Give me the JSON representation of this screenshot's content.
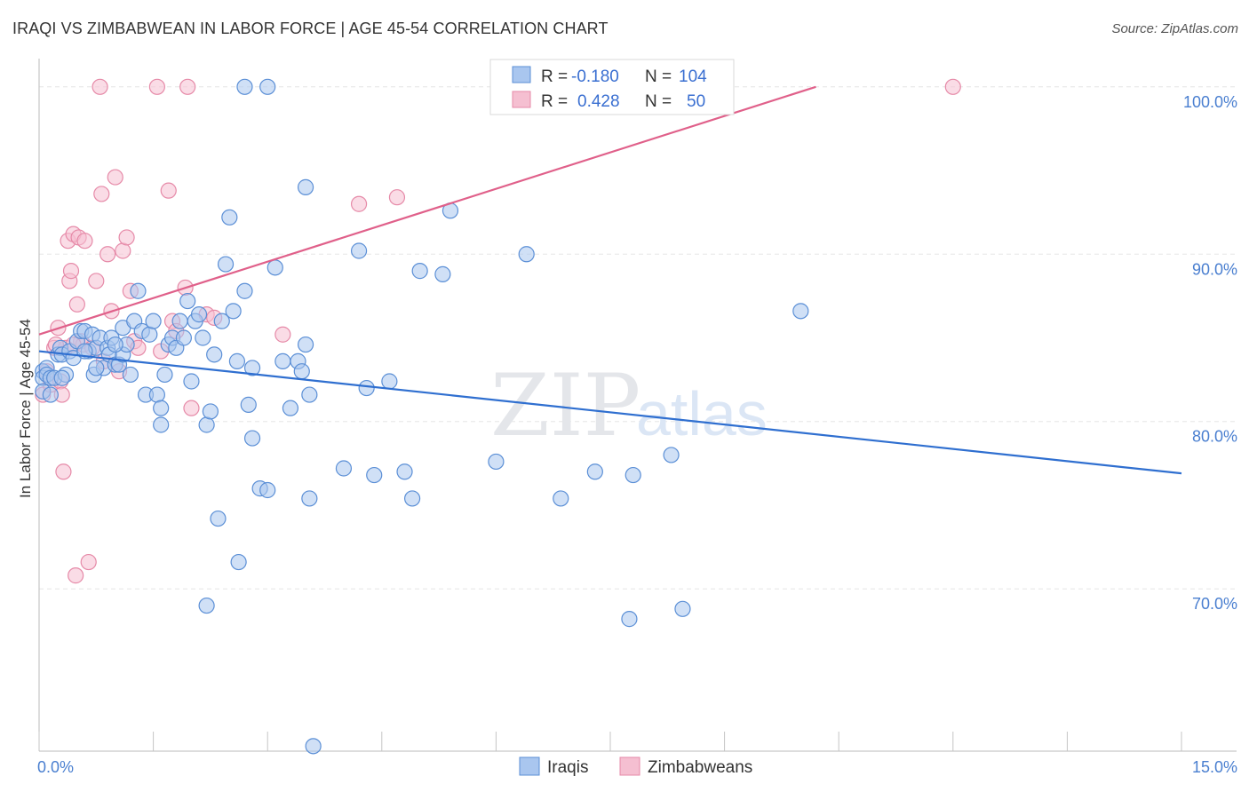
{
  "header": {
    "title": "IRAQI VS ZIMBABWEAN IN LABOR FORCE | AGE 45-54 CORRELATION CHART",
    "source": "Source: ZipAtlas.com"
  },
  "watermark": {
    "zip": "ZIP",
    "atlas": "atlas"
  },
  "legend": {
    "rows": [
      {
        "r_label": "R =",
        "r_value": "-0.180",
        "n_label": "N =",
        "n_value": "104"
      },
      {
        "r_label": "R =",
        "r_value": "0.428",
        "n_label": "N =",
        "n_value": "50"
      }
    ]
  },
  "bottom_legend": {
    "iraqis": "Iraqis",
    "zimbabweans": "Zimbabweans"
  },
  "colors": {
    "iraqi_fill": "#a9c6ef",
    "iraqi_stroke": "#5b8fd6",
    "iraqi_line": "#2f6fd0",
    "zim_fill": "#f5bfd1",
    "zim_stroke": "#e68aa8",
    "zim_line": "#e0608a",
    "grid": "#e6e6e6",
    "axis_text": "#4a7fd0"
  },
  "chart_data": {
    "type": "scatter",
    "title": "IRAQI VS ZIMBABWEAN IN LABOR FORCE | AGE 45-54 CORRELATION CHART",
    "xlabel": "",
    "ylabel": "In Labor Force | Age 45-54",
    "xlim": [
      0,
      15
    ],
    "ylim": [
      60.3,
      101.9
    ],
    "x_tick_labels": [
      {
        "value": 0,
        "label": "0.0%"
      },
      {
        "value": 15,
        "label": "15.0%"
      }
    ],
    "y_tick_labels": [
      {
        "value": 70,
        "label": "70.0%"
      },
      {
        "value": 80,
        "label": "80.0%"
      },
      {
        "value": 90,
        "label": "90.0%"
      },
      {
        "value": 100,
        "label": "100.0%"
      }
    ],
    "series": [
      {
        "name": "Iraqis",
        "R": -0.18,
        "N": 104,
        "trend": {
          "x": [
            0,
            15
          ],
          "y": [
            84.2,
            76.9
          ]
        },
        "points": [
          [
            0.05,
            83.0
          ],
          [
            0.05,
            82.6
          ],
          [
            0.05,
            81.8
          ],
          [
            0.1,
            83.2
          ],
          [
            0.1,
            82.8
          ],
          [
            0.15,
            82.6
          ],
          [
            0.15,
            81.6
          ],
          [
            0.2,
            82.6
          ],
          [
            0.25,
            84.0
          ],
          [
            0.28,
            84.4
          ],
          [
            0.3,
            84.0
          ],
          [
            0.35,
            82.8
          ],
          [
            0.4,
            84.2
          ],
          [
            0.45,
            83.8
          ],
          [
            0.5,
            84.8
          ],
          [
            0.55,
            85.4
          ],
          [
            0.6,
            85.4
          ],
          [
            0.65,
            84.2
          ],
          [
            0.7,
            85.2
          ],
          [
            0.72,
            82.8
          ],
          [
            0.75,
            84.4
          ],
          [
            0.8,
            85.0
          ],
          [
            0.85,
            83.2
          ],
          [
            0.9,
            84.4
          ],
          [
            0.92,
            84.0
          ],
          [
            0.95,
            85.0
          ],
          [
            1.0,
            83.4
          ],
          [
            1.05,
            83.4
          ],
          [
            1.1,
            84.0
          ],
          [
            1.1,
            85.6
          ],
          [
            1.15,
            84.6
          ],
          [
            1.2,
            82.8
          ],
          [
            1.25,
            86.0
          ],
          [
            1.3,
            87.8
          ],
          [
            1.35,
            85.4
          ],
          [
            1.4,
            81.6
          ],
          [
            1.45,
            85.2
          ],
          [
            1.5,
            86.0
          ],
          [
            1.55,
            81.6
          ],
          [
            1.6,
            79.8
          ],
          [
            1.6,
            80.8
          ],
          [
            1.65,
            82.8
          ],
          [
            1.7,
            84.6
          ],
          [
            1.75,
            85.0
          ],
          [
            1.8,
            84.4
          ],
          [
            1.85,
            86.0
          ],
          [
            1.9,
            85.0
          ],
          [
            1.95,
            87.2
          ],
          [
            2.0,
            82.4
          ],
          [
            2.05,
            86.0
          ],
          [
            2.1,
            86.4
          ],
          [
            2.15,
            85.0
          ],
          [
            2.2,
            79.8
          ],
          [
            2.25,
            80.6
          ],
          [
            2.3,
            84.0
          ],
          [
            2.35,
            74.2
          ],
          [
            2.4,
            86.0
          ],
          [
            2.45,
            89.4
          ],
          [
            2.5,
            92.2
          ],
          [
            2.55,
            86.6
          ],
          [
            2.6,
            83.6
          ],
          [
            2.62,
            71.6
          ],
          [
            2.7,
            87.8
          ],
          [
            2.75,
            81.0
          ],
          [
            2.8,
            79.0
          ],
          [
            2.8,
            83.2
          ],
          [
            2.9,
            76.0
          ],
          [
            2.2,
            69.0
          ],
          [
            3.0,
            100.0
          ],
          [
            3.0,
            75.9
          ],
          [
            3.1,
            89.2
          ],
          [
            3.2,
            83.6
          ],
          [
            3.3,
            80.8
          ],
          [
            3.4,
            83.6
          ],
          [
            3.45,
            83.0
          ],
          [
            3.5,
            94.0
          ],
          [
            3.5,
            84.6
          ],
          [
            3.55,
            75.4
          ],
          [
            3.55,
            81.6
          ],
          [
            3.6,
            60.6
          ],
          [
            4.0,
            77.2
          ],
          [
            4.2,
            90.2
          ],
          [
            4.3,
            82.0
          ],
          [
            4.4,
            76.8
          ],
          [
            4.6,
            82.4
          ],
          [
            4.8,
            77.0
          ],
          [
            4.9,
            75.4
          ],
          [
            5.0,
            89.0
          ],
          [
            5.3,
            88.8
          ],
          [
            5.4,
            92.6
          ],
          [
            6.0,
            77.6
          ],
          [
            6.4,
            90.0
          ],
          [
            6.85,
            75.4
          ],
          [
            7.3,
            77.0
          ],
          [
            7.75,
            68.2
          ],
          [
            7.8,
            76.8
          ],
          [
            8.3,
            78.0
          ],
          [
            8.45,
            68.8
          ],
          [
            10.0,
            86.6
          ],
          [
            2.7,
            100.0
          ],
          [
            0.6,
            84.2
          ],
          [
            1.0,
            84.6
          ],
          [
            0.3,
            82.6
          ],
          [
            0.75,
            83.2
          ]
        ]
      },
      {
        "name": "Zimbabweans",
        "R": 0.428,
        "N": 50,
        "trend": {
          "x": [
            0,
            10.2
          ],
          "y": [
            85.2,
            100.0
          ]
        },
        "points": [
          [
            0.05,
            81.6
          ],
          [
            0.1,
            83.0
          ],
          [
            0.15,
            82.2
          ],
          [
            0.2,
            84.4
          ],
          [
            0.25,
            85.6
          ],
          [
            0.28,
            82.4
          ],
          [
            0.3,
            81.6
          ],
          [
            0.32,
            77.0
          ],
          [
            0.35,
            84.4
          ],
          [
            0.38,
            90.8
          ],
          [
            0.4,
            88.4
          ],
          [
            0.42,
            89.0
          ],
          [
            0.45,
            91.2
          ],
          [
            0.48,
            70.8
          ],
          [
            0.5,
            87.0
          ],
          [
            0.52,
            91.0
          ],
          [
            0.55,
            84.8
          ],
          [
            0.58,
            84.6
          ],
          [
            0.6,
            90.8
          ],
          [
            0.65,
            71.6
          ],
          [
            0.7,
            84.4
          ],
          [
            0.75,
            88.4
          ],
          [
            0.8,
            100.0
          ],
          [
            0.82,
            93.6
          ],
          [
            0.85,
            83.6
          ],
          [
            0.9,
            90.0
          ],
          [
            0.95,
            86.6
          ],
          [
            1.0,
            94.6
          ],
          [
            1.05,
            83.0
          ],
          [
            1.1,
            90.2
          ],
          [
            1.15,
            91.0
          ],
          [
            1.2,
            87.8
          ],
          [
            1.25,
            84.8
          ],
          [
            1.55,
            100.0
          ],
          [
            1.6,
            84.2
          ],
          [
            1.7,
            93.8
          ],
          [
            1.75,
            86.0
          ],
          [
            1.8,
            85.4
          ],
          [
            1.92,
            88.0
          ],
          [
            1.95,
            100.0
          ],
          [
            2.0,
            80.8
          ],
          [
            2.2,
            86.4
          ],
          [
            2.3,
            86.2
          ],
          [
            3.2,
            85.2
          ],
          [
            4.2,
            93.0
          ],
          [
            4.7,
            93.4
          ],
          [
            12.0,
            100.0
          ],
          [
            0.22,
            84.6
          ],
          [
            0.45,
            84.6
          ],
          [
            1.3,
            84.4
          ]
        ]
      }
    ],
    "grid": true,
    "legend": "top-center"
  }
}
